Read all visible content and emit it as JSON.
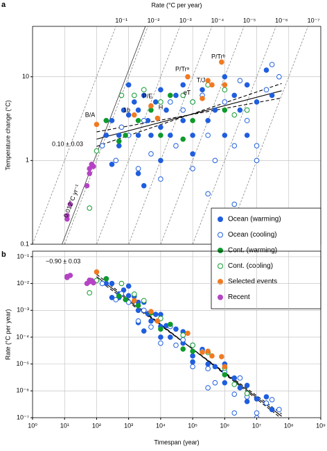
{
  "chart_data": [
    {
      "type": "scatter",
      "panel": "a",
      "title": "Rate (°C per year)",
      "y_label": "Temperature change (°C)",
      "xlim": [
        1,
        1000000000
      ],
      "ylim": [
        0.1,
        40
      ],
      "yticks": [
        0.1,
        1,
        10
      ],
      "log_x": true,
      "log_y": true,
      "grid": true,
      "legend": "lower right",
      "rate_ticks": [
        {
          "value": 0.1,
          "label": "10⁻¹"
        },
        {
          "value": 0.01,
          "label": "10⁻²"
        },
        {
          "value": 0.001,
          "label": "10⁻³"
        },
        {
          "value": 0.0001,
          "label": "10⁻⁴"
        },
        {
          "value": 1e-05,
          "label": "10⁻⁵"
        },
        {
          "value": 1e-06,
          "label": "10⁻⁶"
        },
        {
          "value": 1e-07,
          "label": "10⁻⁷"
        }
      ],
      "fit": {
        "label": "0.10 ± 0.03",
        "slope": 0.1,
        "slope_error": 0.03,
        "value_at": [
          100,
          1.8
        ],
        "xrange": [
          100,
          60000000
        ]
      },
      "rate_line": {
        "label": "0.012°C yr⁻¹",
        "rate": 0.012
      },
      "annotations": [
        "B/A",
        "1b",
        "P/E",
        "H",
        "eT",
        "T/J",
        "P/Trᵃ",
        "P/Trᵇ"
      ],
      "series": [
        {
          "name": "Ocean (warming)",
          "color": "#1f5ede",
          "filled": true,
          "x": [
            200,
            300,
            500,
            700,
            1000,
            1500,
            2000,
            2000,
            3000,
            4000,
            5000,
            7000,
            10000,
            10000,
            15000,
            20000,
            30000,
            50000,
            50000,
            100000,
            100000,
            200000,
            300000,
            500000,
            1000000,
            1000000,
            2000000,
            3000000,
            5000000,
            10000000,
            20000000,
            30000000,
            3000,
            2000,
            10000,
            500,
            300,
            100000,
            5000000,
            1000
          ],
          "values": [
            2,
            3,
            2,
            4,
            3.5,
            5,
            2,
            4,
            6,
            3,
            2,
            5,
            2.5,
            7,
            4,
            2,
            6,
            3,
            8,
            2,
            5,
            7,
            3,
            4,
            2,
            10,
            6,
            4,
            8,
            5,
            12,
            6,
            0.5,
            0.7,
            1,
            1.5,
            0.9,
            1.2,
            2,
            8
          ]
        },
        {
          "name": "Ocean (cooling)",
          "color": "#1f5ede",
          "filled": false,
          "x": [
            150,
            200,
            400,
            600,
            1000,
            2000,
            3000,
            5000,
            10000,
            20000,
            30000,
            50000,
            100000,
            200000,
            300000,
            500000,
            1000000,
            2000000,
            3000000,
            5000000,
            10000000,
            20000000,
            30000000,
            50000000,
            10000000,
            300000,
            2000000
          ],
          "values": [
            1.5,
            3,
            1,
            2.5,
            2,
            0.8,
            3,
            1.2,
            0.6,
            5,
            1.5,
            4,
            0.8,
            6,
            2,
            1,
            5,
            1.5,
            9,
            3,
            1,
            7,
            14,
            10,
            1.5,
            0.4,
            0.3
          ]
        },
        {
          "name": "Cont. (warming)",
          "color": "#0f9a2c",
          "filled": true,
          "x": [
            200,
            500,
            800,
            2000,
            5000,
            10000,
            20000,
            100000,
            50000,
            1000000
          ],
          "values": [
            3,
            1.7,
            2,
            3,
            4,
            2,
            6,
            3,
            1.8,
            4
          ]
        },
        {
          "name": "Cont. (cooling)",
          "color": "#0f9a2c",
          "filled": false,
          "x": [
            60,
            100,
            600,
            1500,
            3000,
            10000,
            50000,
            100000,
            300000,
            1000000,
            2000000,
            5000000
          ],
          "values": [
            0.27,
            1.3,
            6,
            6,
            7,
            5,
            6,
            5,
            8,
            7,
            3.5,
            4
          ]
        },
        {
          "name": "Selected events",
          "color": "#f07a22",
          "filled": true,
          "x": [
            100,
            1500,
            5000,
            8000,
            200000,
            400000,
            70000,
            800000,
            1000000,
            300000
          ],
          "values": [
            2.7,
            3.5,
            4.5,
            3.2,
            5.5,
            8,
            10,
            15,
            8,
            9
          ]
        },
        {
          "name": "Recent",
          "color": "#b444c4",
          "filled": true,
          "x": [
            12,
            12,
            15,
            50,
            60,
            70,
            80,
            60
          ],
          "values": [
            0.2,
            0.22,
            0.3,
            0.5,
            0.8,
            0.9,
            0.85,
            0.7
          ]
        }
      ]
    },
    {
      "type": "scatter",
      "panel": "b",
      "x_label": "Timespan (year)",
      "y_label": "Rate (°C per year)",
      "xlim": [
        1,
        1000000000
      ],
      "ylim": [
        1e-07,
        0.16
      ],
      "log_x": true,
      "log_y": true,
      "grid": true,
      "xticks": [
        {
          "value": 1,
          "label": "10⁰"
        },
        {
          "value": 10,
          "label": "10¹"
        },
        {
          "value": 100,
          "label": "10²"
        },
        {
          "value": 1000,
          "label": "10³"
        },
        {
          "value": 10000,
          "label": "10⁴"
        },
        {
          "value": 100000,
          "label": "10⁵"
        },
        {
          "value": 1000000,
          "label": "10⁶"
        },
        {
          "value": 10000000,
          "label": "10⁷"
        },
        {
          "value": 100000000,
          "label": "10⁸"
        },
        {
          "value": 1000000000,
          "label": "10⁹"
        }
      ],
      "yticks": [
        {
          "value": 1e-07,
          "label": "10⁻⁷"
        },
        {
          "value": 1e-06,
          "label": "10⁻⁶"
        },
        {
          "value": 1e-05,
          "label": "10⁻⁵"
        },
        {
          "value": 0.0001,
          "label": "10⁻⁴"
        },
        {
          "value": 0.001,
          "label": "10⁻³"
        },
        {
          "value": 0.01,
          "label": "10⁻²"
        },
        {
          "value": 0.1,
          "label": "10⁻¹"
        }
      ],
      "fit": {
        "label": "−0.90 ± 0.03",
        "slope": -0.9,
        "slope_error": 0.03,
        "value_at": [
          100,
          0.018
        ],
        "xrange": [
          100,
          60000000
        ]
      },
      "series": [
        {
          "name": "Ocean (warming)",
          "color": "#1f5ede",
          "filled": true,
          "x": [
            200,
            300,
            500,
            700,
            1000,
            1500,
            2000,
            2000,
            3000,
            4000,
            5000,
            7000,
            10000,
            10000,
            15000,
            20000,
            30000,
            50000,
            50000,
            100000,
            100000,
            200000,
            300000,
            500000,
            1000000,
            1000000,
            2000000,
            3000000,
            5000000,
            10000000,
            20000000,
            30000000,
            3000,
            2000,
            10000,
            500,
            300,
            100000,
            5000000,
            1000
          ],
          "values": [
            0.01,
            0.01,
            0.004,
            0.0057,
            0.0035,
            0.0033,
            0.001,
            0.002,
            0.002,
            0.00075,
            0.0004,
            0.00071,
            0.00025,
            0.0007,
            0.00027,
            0.0001,
            0.0002,
            6e-05,
            0.00016,
            2e-05,
            5e-05,
            3.5e-05,
            1e-05,
            8e-06,
            2e-06,
            1e-05,
            3e-06,
            1.3e-06,
            1.6e-06,
            5e-07,
            6e-07,
            2e-07,
            0.00017,
            0.00035,
            0.0001,
            0.003,
            0.003,
            1.2e-05,
            4e-07,
            0.008
          ]
        },
        {
          "name": "Ocean (cooling)",
          "color": "#1f5ede",
          "filled": false,
          "x": [
            150,
            200,
            400,
            600,
            1000,
            2000,
            3000,
            5000,
            10000,
            20000,
            30000,
            50000,
            100000,
            200000,
            300000,
            500000,
            1000000,
            2000000,
            3000000,
            5000000,
            10000000,
            20000000,
            30000000,
            50000000,
            10000000,
            300000,
            2000000
          ],
          "values": [
            0.01,
            0.015,
            0.0025,
            0.0042,
            0.002,
            0.0004,
            0.001,
            0.00024,
            6e-05,
            0.00025,
            5e-05,
            8e-05,
            8e-06,
            3e-05,
            6.7e-06,
            2e-06,
            5e-06,
            7.5e-07,
            3e-06,
            6e-07,
            1e-07,
            3.5e-07,
            4.7e-07,
            2e-07,
            1.5e-07,
            1.3e-06,
            1.5e-07
          ]
        },
        {
          "name": "Cont. (warming)",
          "color": "#0f9a2c",
          "filled": true,
          "x": [
            200,
            500,
            800,
            2000,
            5000,
            10000,
            20000,
            100000,
            50000,
            1000000
          ],
          "values": [
            0.015,
            0.0034,
            0.0025,
            0.0015,
            0.0008,
            0.0002,
            0.0003,
            3e-05,
            3.6e-05,
            4e-06
          ]
        },
        {
          "name": "Cont. (cooling)",
          "color": "#0f9a2c",
          "filled": false,
          "x": [
            60,
            100,
            600,
            1500,
            3000,
            10000,
            50000,
            100000,
            300000,
            1000000,
            2000000,
            5000000
          ],
          "values": [
            0.0045,
            0.013,
            0.01,
            0.004,
            0.0023,
            0.0005,
            0.00012,
            5e-05,
            2.7e-05,
            7e-06,
            1.75e-06,
            8e-07
          ]
        },
        {
          "name": "Selected events",
          "color": "#f07a22",
          "filled": true,
          "x": [
            100,
            1500,
            5000,
            8000,
            200000,
            400000,
            70000,
            800000,
            1000000,
            300000
          ],
          "values": [
            0.027,
            0.0023,
            0.0009,
            0.0004,
            2.75e-05,
            2e-05,
            0.00014,
            1.88e-05,
            8e-06,
            3e-05
          ]
        },
        {
          "name": "Recent",
          "color": "#b444c4",
          "filled": true,
          "x": [
            12,
            12,
            15,
            50,
            60,
            70,
            80,
            60
          ],
          "values": [
            0.0167,
            0.0183,
            0.02,
            0.01,
            0.0133,
            0.0129,
            0.0106,
            0.0117
          ]
        }
      ]
    }
  ]
}
